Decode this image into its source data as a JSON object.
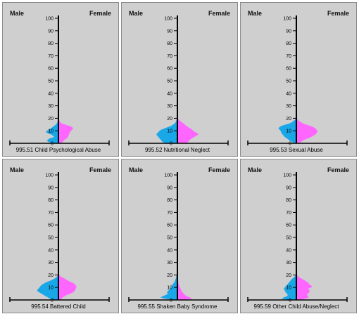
{
  "labels": {
    "male": "Male",
    "female": "Female"
  },
  "colors": {
    "male": "#1aa7e8",
    "female": "#ff66ff",
    "panel_bg": "#cfcfcf",
    "axis": "#000000"
  },
  "chart_data": [
    {
      "type": "area",
      "title": "995.51 Child Psychological Abuse",
      "ylim": [
        0,
        100
      ],
      "yticks": [
        "0",
        "10",
        "20",
        "30",
        "40",
        "50",
        "60",
        "70",
        "80",
        "90",
        "100"
      ],
      "age": [
        0,
        1,
        2,
        3,
        4,
        5,
        6,
        7,
        8,
        9,
        10,
        11,
        12,
        13,
        14,
        15,
        16,
        17,
        18,
        19,
        20
      ],
      "male": [
        0.3,
        0.45,
        0.55,
        0.5,
        0.4,
        0.2,
        0.25,
        0.35,
        0.5,
        0.6,
        0.55,
        0.45,
        0.35,
        0.28,
        0.2,
        0.12,
        0.07,
        0.05,
        0.03,
        0.02,
        0.01
      ],
      "female": [
        0.1,
        0.2,
        0.25,
        0.3,
        0.4,
        0.45,
        0.48,
        0.5,
        0.52,
        0.55,
        0.6,
        0.65,
        0.7,
        0.65,
        0.5,
        0.3,
        0.15,
        0.08,
        0.05,
        0.03,
        0.02
      ]
    },
    {
      "type": "area",
      "title": "995.52 Nutritional Neglect",
      "ylim": [
        0,
        100
      ],
      "yticks": [
        "0",
        "10",
        "20",
        "30",
        "40",
        "50",
        "60",
        "70",
        "80",
        "90",
        "100"
      ],
      "age": [
        0,
        1,
        2,
        3,
        4,
        5,
        6,
        7,
        8,
        9,
        10,
        11,
        12,
        13,
        14,
        15,
        16,
        17,
        18,
        19,
        20
      ],
      "male": [
        0.55,
        0.7,
        0.75,
        0.8,
        0.85,
        0.9,
        0.95,
        1.0,
        0.95,
        0.9,
        0.85,
        0.75,
        0.6,
        0.45,
        0.3,
        0.2,
        0.12,
        0.08,
        0.05,
        0.03,
        0.02
      ],
      "female": [
        0.4,
        0.5,
        0.55,
        0.6,
        0.7,
        0.8,
        0.9,
        1.0,
        0.95,
        0.85,
        0.75,
        0.7,
        0.6,
        0.5,
        0.42,
        0.35,
        0.28,
        0.2,
        0.12,
        0.06,
        0.03
      ]
    },
    {
      "type": "area",
      "title": "995.53 Sexual Abuse",
      "ylim": [
        0,
        100
      ],
      "yticks": [
        "0",
        "10",
        "20",
        "30",
        "40",
        "50",
        "60",
        "70",
        "80",
        "90",
        "100"
      ],
      "age": [
        0,
        1,
        2,
        3,
        4,
        5,
        6,
        7,
        8,
        9,
        10,
        11,
        12,
        13,
        14,
        15,
        16,
        17,
        18,
        19,
        20
      ],
      "male": [
        0.1,
        0.2,
        0.3,
        0.38,
        0.45,
        0.55,
        0.6,
        0.65,
        0.7,
        0.72,
        0.75,
        0.8,
        0.85,
        0.8,
        0.7,
        0.5,
        0.3,
        0.2,
        0.12,
        0.06,
        0.02
      ],
      "female": [
        0.1,
        0.2,
        0.3,
        0.4,
        0.55,
        0.7,
        0.8,
        0.9,
        0.95,
        1.0,
        1.0,
        0.95,
        0.9,
        0.8,
        0.65,
        0.45,
        0.3,
        0.2,
        0.12,
        0.06,
        0.03
      ]
    },
    {
      "type": "area",
      "title": "995.54 Battered Child",
      "ylim": [
        0,
        100
      ],
      "yticks": [
        "0",
        "10",
        "20",
        "30",
        "40",
        "50",
        "60",
        "70",
        "80",
        "90",
        "100"
      ],
      "age": [
        0,
        1,
        2,
        3,
        4,
        5,
        6,
        7,
        8,
        9,
        10,
        11,
        12,
        13,
        14,
        15,
        16,
        17,
        18,
        19,
        20
      ],
      "male": [
        0.3,
        0.4,
        0.5,
        0.6,
        0.7,
        0.8,
        0.9,
        1.0,
        1.0,
        0.95,
        0.9,
        0.85,
        0.8,
        0.7,
        0.6,
        0.45,
        0.3,
        0.2,
        0.1,
        0.05,
        0.02
      ],
      "female": [
        0.1,
        0.15,
        0.2,
        0.3,
        0.4,
        0.55,
        0.7,
        0.75,
        0.8,
        0.82,
        0.85,
        0.85,
        0.8,
        0.75,
        0.65,
        0.5,
        0.4,
        0.3,
        0.2,
        0.1,
        0.04
      ]
    },
    {
      "type": "area",
      "title": "995.55 Shaken Baby Syndrome",
      "ylim": [
        0,
        100
      ],
      "yticks": [
        "0",
        "10",
        "20",
        "30",
        "40",
        "50",
        "60",
        "70",
        "80",
        "90",
        "100"
      ],
      "age": [
        0,
        1,
        2,
        3,
        4,
        5,
        6,
        7,
        8,
        9,
        10,
        11,
        12,
        13,
        14,
        15,
        16,
        17,
        18,
        19,
        20
      ],
      "male": [
        0.2,
        0.6,
        0.8,
        0.7,
        0.55,
        0.45,
        0.5,
        0.45,
        0.4,
        0.35,
        0.3,
        0.25,
        0.25,
        0.2,
        0.15,
        0.12,
        0.1,
        0.08,
        0.06,
        0.05,
        0.03
      ],
      "female": [
        0.35,
        0.7,
        0.6,
        0.45,
        0.35,
        0.3,
        0.25,
        0.2,
        0.18,
        0.15,
        0.12,
        0.1,
        0.08,
        0.06,
        0.05,
        0.04,
        0.03,
        0.02,
        0.02,
        0.01,
        0.01
      ]
    },
    {
      "type": "area",
      "title": "995.59 Other Child Abuse/Neglect",
      "ylim": [
        0,
        100
      ],
      "yticks": [
        "0",
        "10",
        "20",
        "30",
        "40",
        "50",
        "60",
        "70",
        "80",
        "90",
        "100"
      ],
      "age": [
        0,
        1,
        2,
        3,
        4,
        5,
        6,
        7,
        8,
        9,
        10,
        11,
        12,
        13,
        14,
        15,
        16,
        17,
        18,
        19,
        20
      ],
      "male": [
        0.4,
        0.7,
        0.6,
        0.45,
        0.4,
        0.45,
        0.5,
        0.55,
        0.55,
        0.6,
        0.55,
        0.5,
        0.45,
        0.4,
        0.35,
        0.3,
        0.25,
        0.2,
        0.12,
        0.06,
        0.02
      ],
      "female": [
        0.2,
        0.4,
        0.6,
        0.55,
        0.5,
        0.55,
        0.6,
        0.65,
        0.6,
        0.55,
        0.7,
        0.75,
        0.65,
        0.6,
        0.55,
        0.45,
        0.35,
        0.25,
        0.15,
        0.08,
        0.03
      ]
    }
  ]
}
